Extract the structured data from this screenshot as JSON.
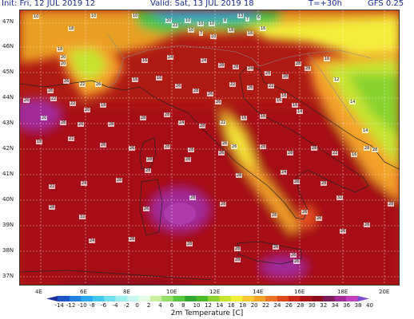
{
  "header": {
    "init": "Init: Fri, 12 JUL 2019   12",
    "valid": "Valid: Sat, 13 JUL 2019   18",
    "lead": "T=+30h",
    "model": "GFS 0.25"
  },
  "lat_labels": [
    "47N",
    "46N",
    "45N",
    "44N",
    "43N",
    "42N",
    "41N",
    "40N",
    "39N",
    "38N",
    "37N"
  ],
  "lon_labels": [
    "4E",
    "6E",
    "8E",
    "10E",
    "12E",
    "14E",
    "16E",
    "18E",
    "20E"
  ],
  "colorbar": {
    "ticks": [
      "-14",
      "-12",
      "-10",
      "-8",
      "-6",
      "-4",
      "-2",
      "0",
      "2",
      "4",
      "6",
      "8",
      "10",
      "12",
      "14",
      "16",
      "18",
      "20",
      "22",
      "24",
      "26",
      "28",
      "30",
      "32",
      "34",
      "36",
      "38",
      "40"
    ],
    "colors": [
      "#1c2f9e",
      "#1f55c8",
      "#2080e0",
      "#2aa8f0",
      "#40c8f0",
      "#6ee0f0",
      "#9ff0f0",
      "#c8f7f0",
      "#e4fbe4",
      "#c8f0a0",
      "#94e066",
      "#58c83c",
      "#2fa82e",
      "#4cbb2a",
      "#8ad22e",
      "#c8e430",
      "#f3ee3a",
      "#f8c832",
      "#f3a22a",
      "#ec7424",
      "#dc4a1c",
      "#c8281a",
      "#a81414",
      "#8e0e1c",
      "#7c1c5a",
      "#a02a98",
      "#c040c0",
      "#7a4ad0"
    ],
    "label": "2m Temperature [C]"
  },
  "values": [
    "10",
    "10",
    "10",
    "20",
    "22",
    "10",
    "10",
    "10",
    "8",
    "13",
    "7",
    "6",
    "10",
    "7",
    "10",
    "18",
    "16",
    "16",
    "18",
    "18",
    "20",
    "20",
    "26",
    "22",
    "26",
    "26",
    "26",
    "22",
    "22",
    "20",
    "18",
    "16",
    "16",
    "26",
    "28",
    "26",
    "26",
    "28",
    "24",
    "28",
    "28",
    "28",
    "28",
    "16",
    "16",
    "16",
    "24",
    "24",
    "28",
    "22",
    "26",
    "22",
    "16",
    "16",
    "12",
    "14",
    "14",
    "28",
    "28",
    "20",
    "26",
    "26",
    "28",
    "28",
    "28",
    "24",
    "28",
    "22",
    "16",
    "16",
    "14",
    "18",
    "22",
    "26",
    "26",
    "28",
    "28",
    "26",
    "26",
    "26",
    "28",
    "28",
    "28",
    "22",
    "16",
    "22",
    "24",
    "28",
    "28",
    "28",
    "26",
    "28",
    "24",
    "28",
    "28",
    "32",
    "26",
    "28",
    "28",
    "32",
    "26",
    "28",
    "28",
    "28",
    "26",
    "26",
    "26",
    "24",
    "28",
    "28",
    "28",
    "26",
    "26",
    "26",
    "28",
    "26",
    "26",
    "24",
    "26"
  ]
}
